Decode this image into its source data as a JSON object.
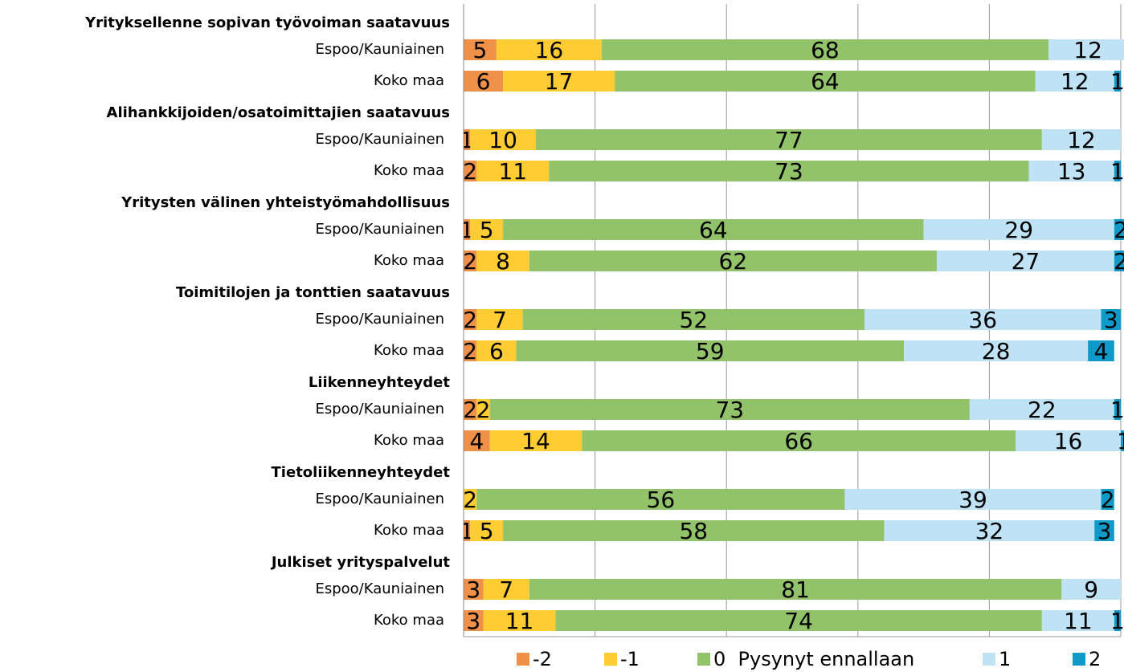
{
  "chart_data": {
    "type": "bar",
    "orientation": "horizontal",
    "stacked": true,
    "groups": [
      "Yrityksellenne sopivan työvoiman saatavuus",
      "Alihankkijoiden/osatoimittajien saatavuus",
      "Yritysten välinen yhteistyömahdollisuus",
      "Toimitilojen ja tonttien saatavuus",
      "Liikenneyhteydet",
      "Tietoliikenneyhteydet",
      "Julkiset yrityspalvelut"
    ],
    "categories": [
      "Espoo/Kauniainen",
      "Koko maa",
      "Espoo/Kauniainen",
      "Koko maa",
      "Espoo/Kauniainen",
      "Koko maa",
      "Espoo/Kauniainen",
      "Koko maa",
      "Espoo/Kauniainen",
      "Koko maa",
      "Espoo/Kauniainen",
      "Koko maa",
      "Espoo/Kauniainen",
      "Koko maa"
    ],
    "series": [
      {
        "name": "-2",
        "color": "#f0914a",
        "values": [
          5,
          6,
          1,
          2,
          1,
          2,
          2,
          2,
          2,
          4,
          null,
          1,
          3,
          3
        ]
      },
      {
        "name": "-1",
        "color": "#ffcc33",
        "values": [
          16,
          17,
          10,
          11,
          5,
          8,
          7,
          6,
          2,
          14,
          2,
          5,
          7,
          11
        ]
      },
      {
        "name": "0  Pysynyt ennallaan",
        "color": "#92c36a",
        "values": [
          68,
          64,
          77,
          73,
          64,
          62,
          52,
          59,
          73,
          66,
          56,
          58,
          81,
          74
        ]
      },
      {
        "name": "1",
        "color": "#c0e2f5",
        "values": [
          12,
          12,
          12,
          13,
          29,
          27,
          36,
          28,
          22,
          16,
          39,
          32,
          9,
          11
        ]
      },
      {
        "name": "2",
        "color": "#109ac9",
        "values": [
          null,
          1,
          null,
          1,
          2,
          2,
          3,
          4,
          1,
          1,
          2,
          3,
          null,
          1
        ]
      }
    ],
    "xlim": [
      0,
      100
    ],
    "xticks": [
      0,
      20,
      40,
      60,
      80,
      100
    ],
    "grid": true,
    "legend": "bottom"
  }
}
